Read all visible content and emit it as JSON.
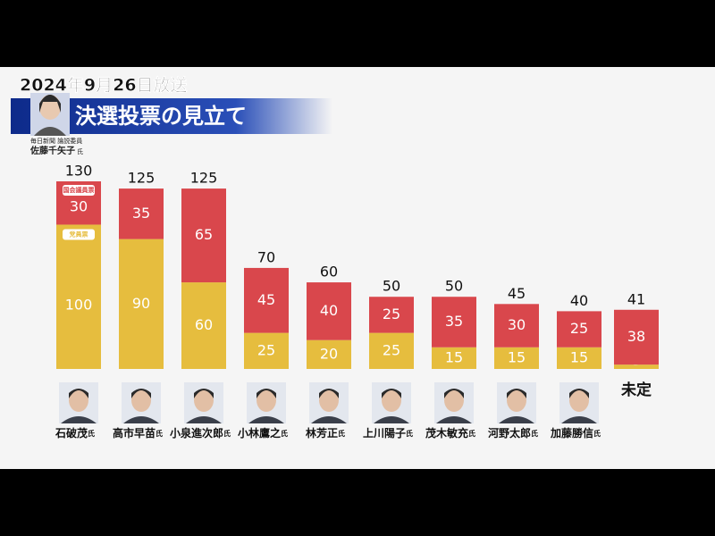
{
  "header": {
    "date": "2024年9月26日放送",
    "title": "決選投票の見立て",
    "commentator_affiliation": "毎日新聞 論説委員",
    "commentator_name": "佐藤千矢子",
    "honorific": "氏"
  },
  "chart_data": {
    "type": "stacked-bar",
    "categories": [
      "石破茂",
      "高市早苗",
      "小泉進次郎",
      "小林鷹之",
      "林芳正",
      "上川陽子",
      "茂木敏充",
      "河野太郎",
      "加藤勝信",
      "未定"
    ],
    "totals": [
      130,
      125,
      125,
      70,
      60,
      50,
      50,
      45,
      40,
      41
    ],
    "series": [
      {
        "name": "党員票",
        "color": "#e6bd3e",
        "values": [
          100,
          90,
          60,
          25,
          20,
          25,
          15,
          15,
          15,
          3
        ]
      },
      {
        "name": "国会議員票",
        "color": "#d9474c",
        "values": [
          30,
          35,
          65,
          45,
          40,
          25,
          35,
          30,
          25,
          38
        ]
      }
    ],
    "ylim": [
      0,
      130
    ]
  }
}
